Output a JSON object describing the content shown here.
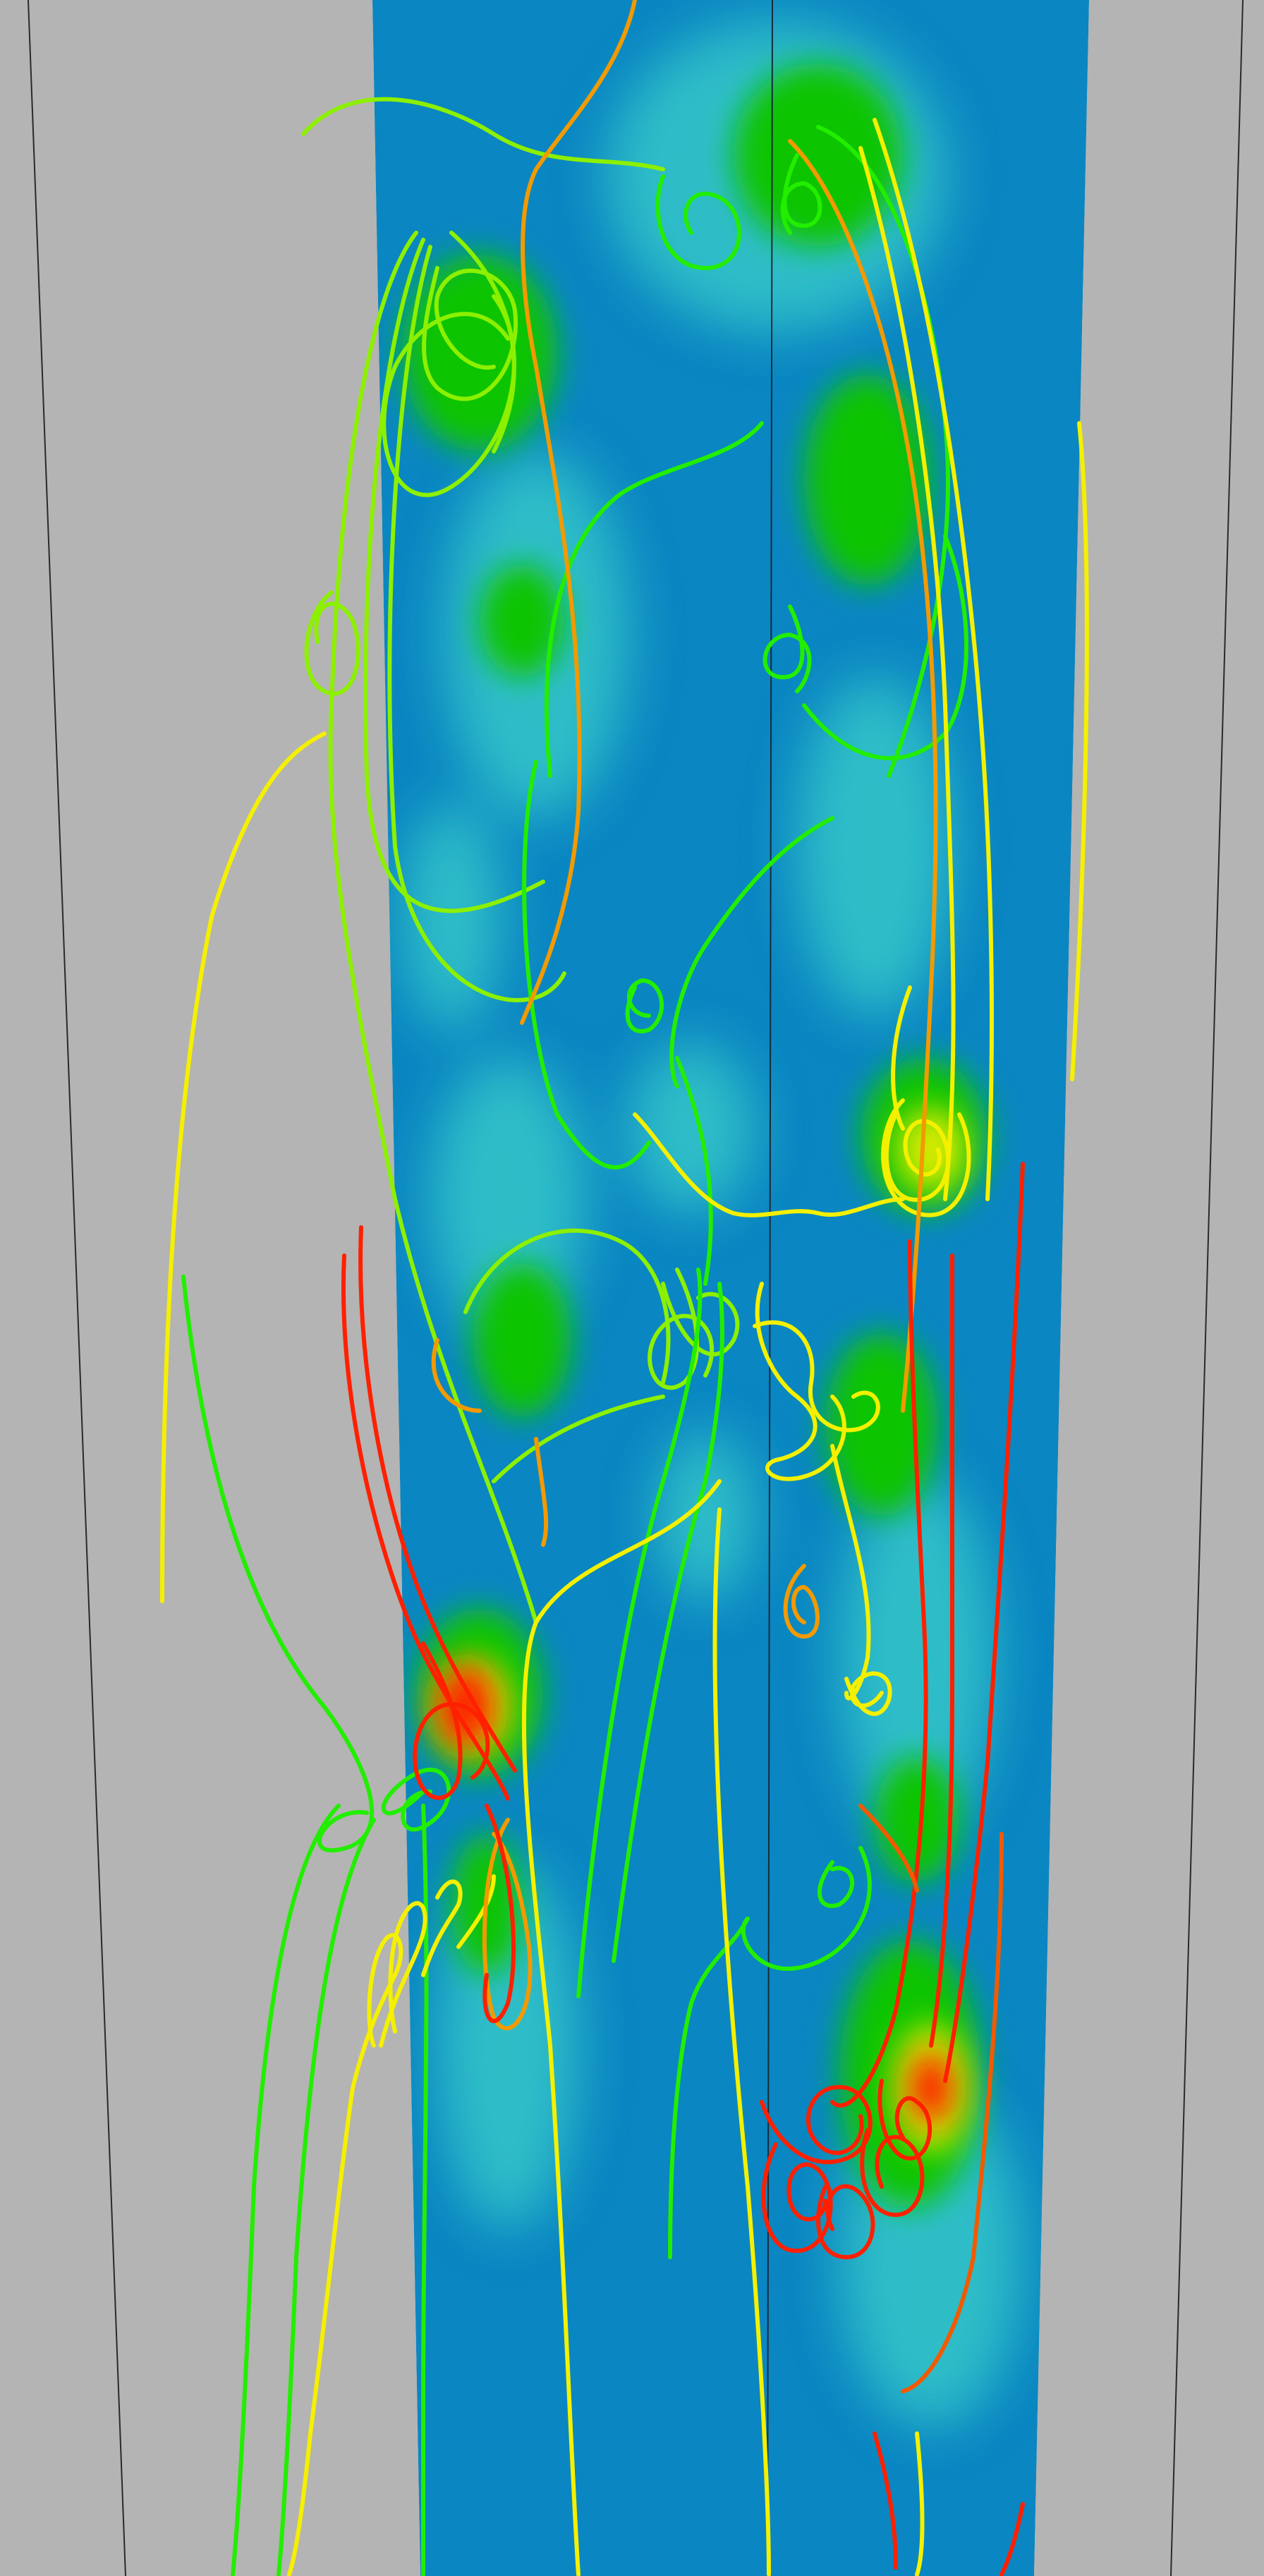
{
  "scene": {
    "background_color": "#b4b4b4",
    "slice_base_color": "#0a86c2",
    "blob_palette": {
      "cyan": "#35c7c9",
      "green": "#08c400",
      "yellow": "#e8ee00",
      "red": "#ff1a00"
    },
    "streamline_palette": {
      "lime": "#8cf000",
      "green": "#22ee00",
      "yellow": "#f4f000",
      "orange": "#f29a00",
      "red": "#ff2000"
    },
    "edge_color": "#2a2a2a"
  }
}
